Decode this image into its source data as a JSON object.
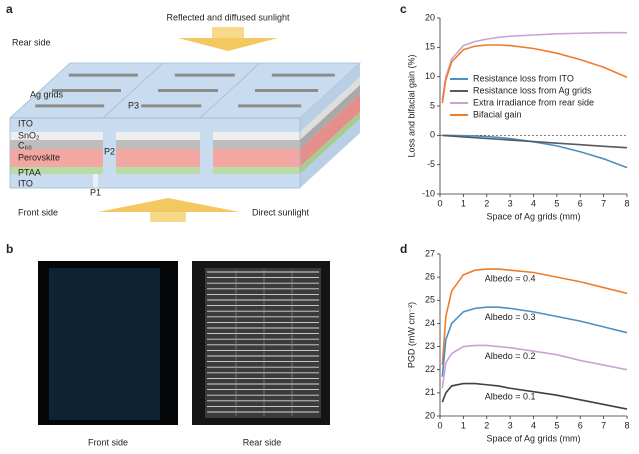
{
  "panel_labels": [
    "a",
    "b",
    "c",
    "d"
  ],
  "panel_a": {
    "top_arrow": "Reflected and diffused sunlight",
    "rear": "Rear side",
    "ag_grids": "Ag grids",
    "p3": "P3",
    "layers": [
      "ITO",
      "SnO₂",
      "C₆₀",
      "Perovskite",
      "PTAA",
      "ITO"
    ],
    "p2": "P2",
    "p1": "P1",
    "front": "Front side",
    "bottom_arrow": "Direct sunlight"
  },
  "panel_b": {
    "captions": [
      "Front side",
      "Rear side"
    ]
  },
  "chart_data": [
    {
      "type": "line",
      "xlabel": "Space of Ag grids (mm)",
      "ylabel": "Loss and bifacial gain (%)",
      "x": [
        0.1,
        0.25,
        0.5,
        1,
        1.5,
        2,
        2.5,
        3,
        4,
        5,
        6,
        7,
        8
      ],
      "xlim": [
        0,
        8
      ],
      "ylim": [
        -10,
        20
      ],
      "xticks": [
        0,
        1,
        2,
        3,
        4,
        5,
        6,
        7,
        8
      ],
      "yticks": [
        -10,
        -5,
        0,
        5,
        10,
        15,
        20
      ],
      "legend": "center right",
      "series": [
        {
          "name": "Resistance loss from ITO",
          "color": "#4a90c4",
          "values": [
            0,
            0,
            -0.02,
            -0.05,
            -0.1,
            -0.2,
            -0.35,
            -0.55,
            -1.1,
            -1.8,
            -2.8,
            -4.0,
            -5.5
          ]
        },
        {
          "name": "Resistance loss from Ag grids",
          "color": "#555b63",
          "values": [
            -0.03,
            -0.07,
            -0.13,
            -0.27,
            -0.4,
            -0.53,
            -0.67,
            -0.8,
            -1.07,
            -1.33,
            -1.6,
            -1.87,
            -2.1
          ]
        },
        {
          "name": "Extra irradiance from rear side",
          "color": "#c9a3d4",
          "values": [
            6,
            10,
            13,
            15.3,
            16,
            16.4,
            16.7,
            16.9,
            17.1,
            17.3,
            17.4,
            17.5,
            17.5
          ]
        },
        {
          "name": "Bifacial gain",
          "color": "#ee7d2b",
          "values": [
            5.5,
            9.5,
            12.5,
            14.6,
            15.2,
            15.4,
            15.4,
            15.3,
            14.8,
            14.0,
            12.9,
            11.6,
            9.9
          ]
        }
      ]
    },
    {
      "type": "line",
      "xlabel": "Space of Ag grids (mm)",
      "ylabel": "PGD (mW cm⁻²)",
      "x": [
        0.1,
        0.25,
        0.5,
        1,
        1.5,
        2,
        2.5,
        3,
        4,
        5,
        6,
        7,
        8
      ],
      "xlim": [
        0,
        8
      ],
      "ylim": [
        20,
        27
      ],
      "xticks": [
        0,
        1,
        2,
        3,
        4,
        5,
        6,
        7,
        8
      ],
      "yticks": [
        20,
        21,
        22,
        23,
        24,
        25,
        26,
        27
      ],
      "series": [
        {
          "name": "Albedo = 0.4",
          "color": "#ee7d2b",
          "values": [
            22.2,
            24.3,
            25.4,
            26.1,
            26.3,
            26.35,
            26.35,
            26.3,
            26.2,
            26.0,
            25.8,
            25.55,
            25.3
          ]
        },
        {
          "name": "Albedo = 0.3",
          "color": "#4a90c4",
          "values": [
            21.7,
            23.3,
            24.0,
            24.5,
            24.65,
            24.7,
            24.7,
            24.65,
            24.5,
            24.3,
            24.1,
            23.85,
            23.6
          ]
        },
        {
          "name": "Albedo = 0.2",
          "color": "#c9a3d4",
          "values": [
            21.2,
            22.3,
            22.7,
            23.0,
            23.05,
            23.05,
            23.0,
            22.95,
            22.8,
            22.65,
            22.4,
            22.2,
            22.0
          ]
        },
        {
          "name": "Albedo = 0.1",
          "color": "#3d4148",
          "values": [
            20.6,
            21.0,
            21.3,
            21.4,
            21.4,
            21.35,
            21.3,
            21.2,
            21.05,
            20.9,
            20.7,
            20.5,
            20.3
          ]
        }
      ]
    }
  ]
}
